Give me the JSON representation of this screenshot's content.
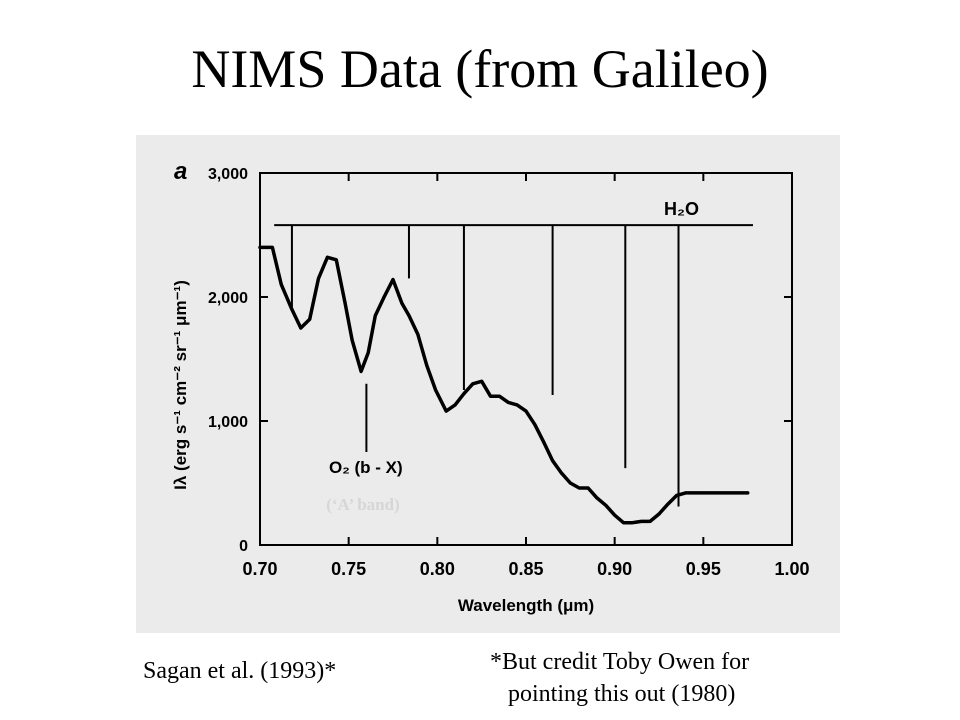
{
  "slide": {
    "title": "NIMS Data (from Galileo)",
    "citation": "Sagan et al. (1993)*",
    "credit_line1": "*But credit Toby Owen for",
    "credit_line2": "pointing this out (1980)"
  },
  "chart_data": {
    "type": "line",
    "panel_label": "a",
    "xlabel": "Wavelength (μm)",
    "ylabel": "Iλ (erg s⁻¹ cm⁻² sr⁻¹ μm⁻¹)",
    "xlim": [
      0.7,
      1.0
    ],
    "ylim": [
      0,
      3000
    ],
    "xticks": [
      0.7,
      0.75,
      0.8,
      0.85,
      0.9,
      0.95,
      1.0
    ],
    "xtick_labels": [
      "0.70",
      "0.75",
      "0.80",
      "0.85",
      "0.90",
      "0.95",
      "1.00"
    ],
    "yticks": [
      0,
      1000,
      2000,
      3000
    ],
    "ytick_labels": [
      "0",
      "1,000",
      "2,000",
      "3,000"
    ],
    "series": [
      {
        "x": [
          0.7,
          0.707,
          0.712,
          0.718,
          0.723,
          0.728,
          0.733,
          0.738,
          0.743,
          0.748,
          0.752,
          0.757,
          0.761,
          0.765,
          0.77,
          0.775,
          0.78,
          0.784,
          0.789,
          0.794,
          0.799,
          0.805,
          0.81,
          0.815,
          0.82,
          0.825,
          0.83,
          0.835,
          0.84,
          0.845,
          0.85,
          0.855,
          0.86,
          0.865,
          0.87,
          0.875,
          0.88,
          0.885,
          0.89,
          0.895,
          0.9,
          0.905,
          0.91,
          0.915,
          0.92,
          0.925,
          0.93,
          0.935,
          0.94,
          0.945,
          0.95,
          0.955,
          0.96,
          0.965,
          0.97,
          0.975
        ],
        "y": [
          2400,
          2400,
          2100,
          1900,
          1750,
          1820,
          2150,
          2320,
          2300,
          1950,
          1650,
          1400,
          1550,
          1850,
          2000,
          2140,
          1950,
          1850,
          1700,
          1450,
          1250,
          1080,
          1130,
          1220,
          1300,
          1320,
          1200,
          1200,
          1150,
          1130,
          1080,
          970,
          830,
          680,
          580,
          500,
          460,
          460,
          380,
          320,
          240,
          180,
          180,
          190,
          190,
          250,
          330,
          400,
          420,
          420,
          420,
          420,
          420,
          420,
          420,
          420
        ]
      }
    ],
    "h2o_label": "H₂O",
    "h2o_bar_y": 2580,
    "h2o_bands": [
      {
        "x": 0.718,
        "y_low": 1900
      },
      {
        "x": 0.784,
        "y_low": 2150
      },
      {
        "x": 0.815,
        "y_low": 1250
      },
      {
        "x": 0.865,
        "y_low": 1210
      },
      {
        "x": 0.906,
        "y_low": 620
      },
      {
        "x": 0.936,
        "y_low": 310
      }
    ],
    "o2_label": "O₂ (b - X)",
    "o2_band": {
      "x": 0.76,
      "y_top": 1300,
      "y_low": 750
    },
    "a_band_note": "(‘A’ band)"
  }
}
